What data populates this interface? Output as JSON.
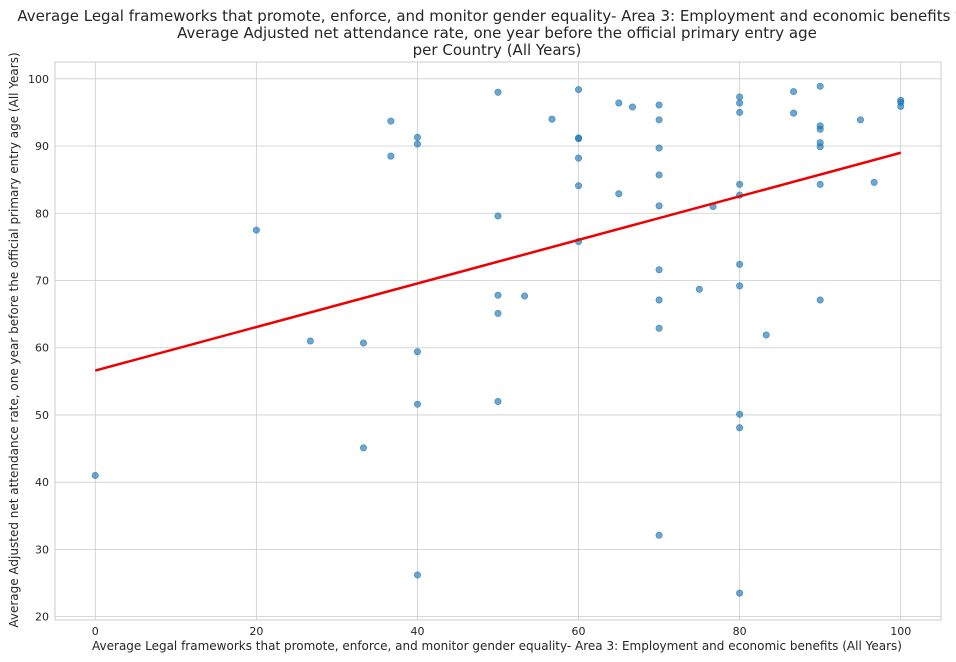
{
  "chart_data": {
    "type": "scatter",
    "title": [
      "Average Legal frameworks that promote, enforce, and monitor gender equality- Area 3: Employment and economic benefits vs.",
      "Average Adjusted net attendance rate, one year before the official primary entry age",
      "per Country (All Years)"
    ],
    "xlabel": "Average Legal frameworks that promote, enforce, and monitor gender equality- Area 3: Employment and economic benefits (All Years)",
    "ylabel": "Average Adjusted net attendance rate, one year before the official primary entry age (All Years)",
    "xlim": [
      -5,
      105
    ],
    "ylim": [
      19.5,
      102.5
    ],
    "xticks": [
      0,
      20,
      40,
      60,
      80,
      100
    ],
    "yticks": [
      20,
      30,
      40,
      50,
      60,
      70,
      80,
      90,
      100
    ],
    "grid": true,
    "point_color": "#1f77b4",
    "trend_color": "#ee0000",
    "trendline": {
      "x": [
        0,
        100
      ],
      "y": [
        56.6,
        89.0
      ]
    },
    "points": [
      {
        "x": 0,
        "y": 41.0
      },
      {
        "x": 20,
        "y": 77.5
      },
      {
        "x": 26.7,
        "y": 61.0
      },
      {
        "x": 33.3,
        "y": 60.7
      },
      {
        "x": 33.3,
        "y": 45.1
      },
      {
        "x": 36.7,
        "y": 93.7
      },
      {
        "x": 36.7,
        "y": 88.5
      },
      {
        "x": 40,
        "y": 91.3
      },
      {
        "x": 40,
        "y": 90.3
      },
      {
        "x": 40,
        "y": 59.4
      },
      {
        "x": 40,
        "y": 51.6
      },
      {
        "x": 40,
        "y": 26.2
      },
      {
        "x": 50,
        "y": 98.0
      },
      {
        "x": 50,
        "y": 79.6
      },
      {
        "x": 50,
        "y": 67.8
      },
      {
        "x": 50,
        "y": 65.1
      },
      {
        "x": 50,
        "y": 52.0
      },
      {
        "x": 53.3,
        "y": 67.7
      },
      {
        "x": 56.7,
        "y": 94.0
      },
      {
        "x": 60,
        "y": 98.4
      },
      {
        "x": 60,
        "y": 91.2
      },
      {
        "x": 60,
        "y": 91.1
      },
      {
        "x": 60,
        "y": 88.2
      },
      {
        "x": 60,
        "y": 84.1
      },
      {
        "x": 60,
        "y": 75.8
      },
      {
        "x": 65,
        "y": 96.4
      },
      {
        "x": 65,
        "y": 82.9
      },
      {
        "x": 66.7,
        "y": 95.8
      },
      {
        "x": 70,
        "y": 96.1
      },
      {
        "x": 70,
        "y": 93.9
      },
      {
        "x": 70,
        "y": 89.7
      },
      {
        "x": 70,
        "y": 85.7
      },
      {
        "x": 70,
        "y": 81.1
      },
      {
        "x": 70,
        "y": 71.6
      },
      {
        "x": 70,
        "y": 67.1
      },
      {
        "x": 70,
        "y": 62.9
      },
      {
        "x": 70,
        "y": 32.1
      },
      {
        "x": 75,
        "y": 68.7
      },
      {
        "x": 76.7,
        "y": 81.0
      },
      {
        "x": 80,
        "y": 97.3
      },
      {
        "x": 80,
        "y": 96.4
      },
      {
        "x": 80,
        "y": 95.0
      },
      {
        "x": 80,
        "y": 84.3
      },
      {
        "x": 80,
        "y": 82.7
      },
      {
        "x": 80,
        "y": 72.4
      },
      {
        "x": 80,
        "y": 69.2
      },
      {
        "x": 80,
        "y": 50.1
      },
      {
        "x": 80,
        "y": 48.1
      },
      {
        "x": 80,
        "y": 23.5
      },
      {
        "x": 83.3,
        "y": 61.9
      },
      {
        "x": 86.7,
        "y": 98.1
      },
      {
        "x": 86.7,
        "y": 94.9
      },
      {
        "x": 90,
        "y": 98.9
      },
      {
        "x": 90,
        "y": 93.0
      },
      {
        "x": 90,
        "y": 92.5
      },
      {
        "x": 90,
        "y": 90.5
      },
      {
        "x": 90,
        "y": 89.9
      },
      {
        "x": 90,
        "y": 84.3
      },
      {
        "x": 90,
        "y": 67.1
      },
      {
        "x": 95,
        "y": 93.9
      },
      {
        "x": 96.7,
        "y": 84.6
      },
      {
        "x": 100,
        "y": 96.8
      },
      {
        "x": 100,
        "y": 96.5
      },
      {
        "x": 100,
        "y": 95.9
      }
    ]
  }
}
